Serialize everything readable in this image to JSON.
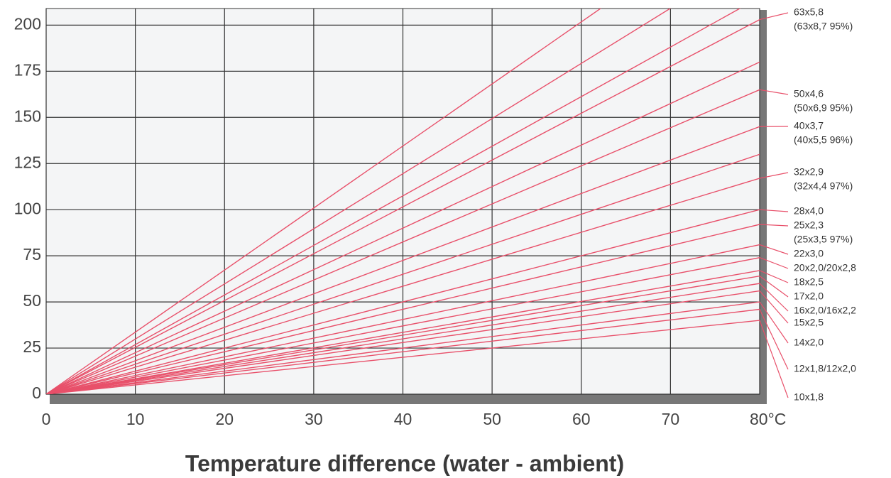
{
  "chart_data": {
    "type": "line",
    "xlabel": "Temperature difference (water - ambient)",
    "x": [
      0,
      80
    ],
    "xlim": [
      0,
      80
    ],
    "xticks": [
      0,
      10,
      20,
      30,
      40,
      50,
      60,
      70,
      {
        "value": 80,
        "label": "80°C"
      }
    ],
    "ylim": [
      0,
      209
    ],
    "yticks": [
      0,
      25,
      50,
      75,
      100,
      125,
      150,
      175,
      200
    ],
    "grid": true,
    "series": [
      {
        "name": "63x5,8",
        "color": "#e8506a",
        "values": [
          0,
          203
        ]
      },
      {
        "name": "(63x8,7 95%)",
        "color": "#e8506a",
        "values": [
          0,
          269
        ]
      },
      {
        "name": "50x4,6",
        "color": "#e8506a",
        "values": [
          0,
          165
        ]
      },
      {
        "name": "(50x6,9 95%)",
        "color": "#e8506a",
        "values": [
          0,
          239
        ]
      },
      {
        "name": "40x3,7",
        "color": "#e8506a",
        "values": [
          0,
          145
        ]
      },
      {
        "name": "(40x5,5 96%)",
        "color": "#e8506a",
        "values": [
          0,
          215
        ]
      },
      {
        "name": "32x2,9",
        "color": "#e8506a",
        "values": [
          0,
          117
        ]
      },
      {
        "name": "(32x4,4 97%)",
        "color": "#e8506a",
        "values": [
          0,
          180
        ]
      },
      {
        "name": "28x4,0",
        "color": "#e8506a",
        "values": [
          0,
          100
        ]
      },
      {
        "name": "25x2,3",
        "color": "#e8506a",
        "values": [
          0,
          92
        ]
      },
      {
        "name": "(25x3,5 97%)",
        "color": "#e8506a",
        "values": [
          0,
          130
        ]
      },
      {
        "name": "22x3,0",
        "color": "#e8506a",
        "values": [
          0,
          81
        ]
      },
      {
        "name": "20x2,0/20x2,8",
        "color": "#e8506a",
        "values": [
          0,
          74
        ]
      },
      {
        "name": "18x2,5",
        "color": "#e8506a",
        "values": [
          0,
          67
        ]
      },
      {
        "name": "17x2,0",
        "color": "#e8506a",
        "values": [
          0,
          64
        ]
      },
      {
        "name": "16x2,0/16x2,2",
        "color": "#e8506a",
        "values": [
          0,
          60
        ]
      },
      {
        "name": "15x2,5",
        "color": "#e8506a",
        "values": [
          0,
          56
        ]
      },
      {
        "name": "14x2,0",
        "color": "#e8506a",
        "values": [
          0,
          50
        ]
      },
      {
        "name": "12x1,8/12x2,0",
        "color": "#e8506a",
        "values": [
          0,
          46
        ]
      },
      {
        "name": "10x1,8",
        "color": "#e8506a",
        "values": [
          0,
          40
        ]
      }
    ]
  }
}
